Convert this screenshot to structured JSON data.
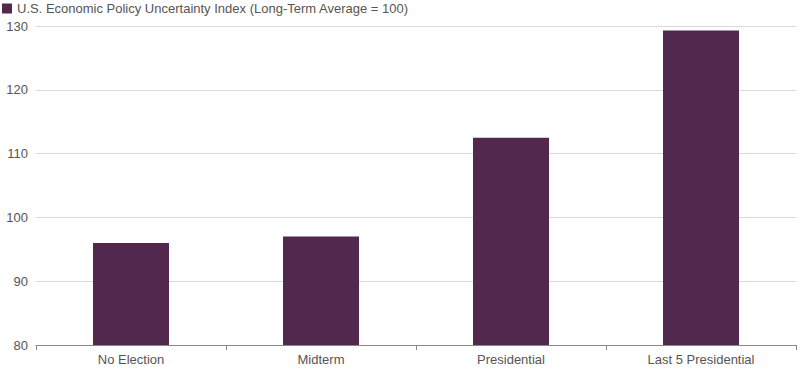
{
  "chart_data": {
    "type": "bar",
    "categories": [
      "No Election",
      "Midterm",
      "Presidential",
      "Last 5 Presidential"
    ],
    "series": [
      {
        "name": "U.S. Economic Policy Uncertainty Index (Long-Term Average = 100)",
        "color": "#52284f",
        "values": [
          96,
          97,
          112.5,
          129.3
        ]
      }
    ],
    "ylim": [
      80,
      130
    ],
    "yticks": [
      80,
      90,
      100,
      110,
      120,
      130
    ],
    "grid": true,
    "legend": "top-left"
  }
}
